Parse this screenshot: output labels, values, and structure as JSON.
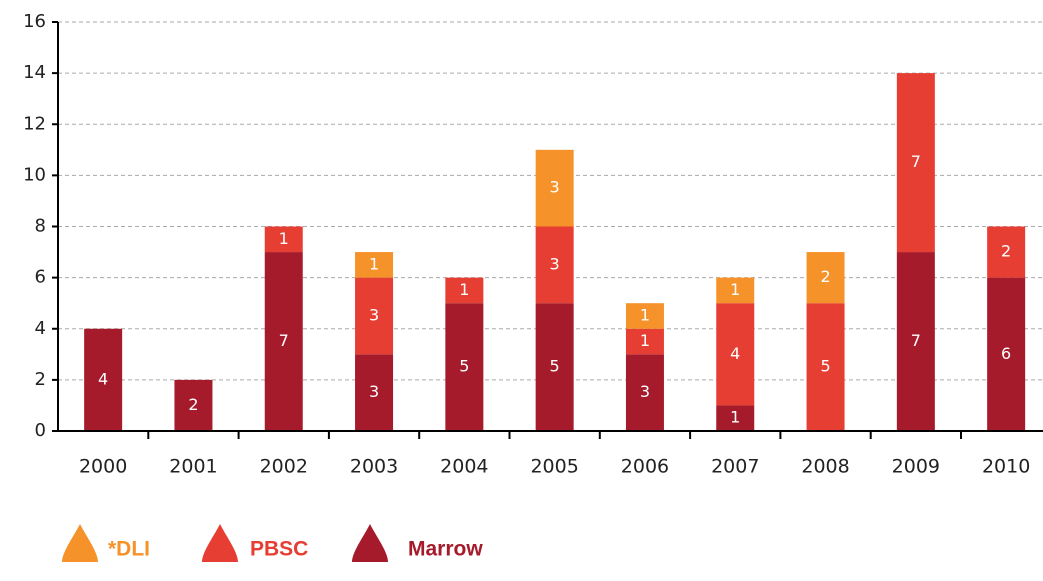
{
  "chart_data": {
    "type": "stacked_bar",
    "categories": [
      "2000",
      "2001",
      "2002",
      "2003",
      "2004",
      "2005",
      "2006",
      "2007",
      "2008",
      "2009",
      "2010"
    ],
    "series": [
      {
        "name": "Marrow",
        "color": "#a51b2b",
        "values": [
          4,
          2,
          7,
          3,
          5,
          5,
          3,
          1,
          0,
          7,
          6
        ]
      },
      {
        "name": "PBSC",
        "color": "#e63e32",
        "values": [
          0,
          0,
          1,
          3,
          1,
          3,
          1,
          4,
          5,
          7,
          2
        ]
      },
      {
        "name": "*DLI",
        "color": "#f5922a",
        "values": [
          0,
          0,
          0,
          1,
          0,
          3,
          1,
          1,
          2,
          0,
          0
        ]
      }
    ],
    "ylim": [
      0,
      16
    ],
    "yticks": [
      0,
      2,
      4,
      6,
      8,
      10,
      12,
      14,
      16
    ],
    "grid": true,
    "legend": "bottom"
  }
}
